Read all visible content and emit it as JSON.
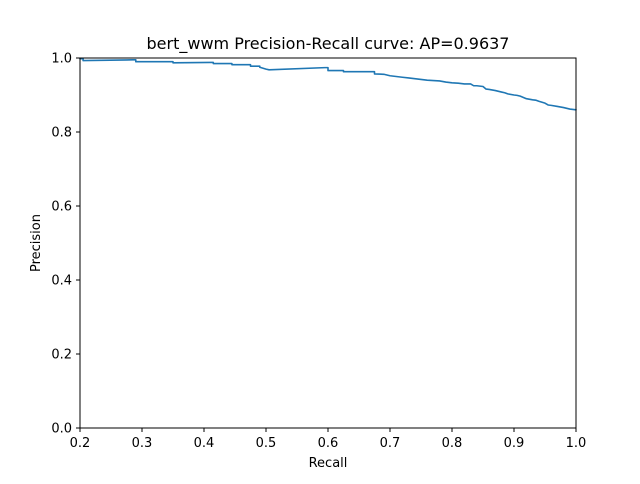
{
  "chart_data": {
    "type": "line",
    "title": "bert_wwm Precision-Recall curve: AP=0.9637",
    "xlabel": "Recall",
    "ylabel": "Precision",
    "xlim": [
      0.2,
      1.0
    ],
    "ylim": [
      0.0,
      1.0
    ],
    "xticks": [
      "0.2",
      "0.3",
      "0.4",
      "0.5",
      "0.6",
      "0.7",
      "0.8",
      "0.9",
      "1.0"
    ],
    "yticks": [
      "0.0",
      "0.2",
      "0.4",
      "0.6",
      "0.8",
      "1.0"
    ],
    "grid": false,
    "legend": false,
    "line_color": "#1f77b4",
    "series": [
      {
        "name": "",
        "x": [
          0.2,
          0.205,
          0.205,
          0.285,
          0.29,
          0.29,
          0.345,
          0.35,
          0.35,
          0.41,
          0.415,
          0.415,
          0.44,
          0.445,
          0.445,
          0.47,
          0.475,
          0.475,
          0.485,
          0.49,
          0.49,
          0.5,
          0.505,
          0.595,
          0.6,
          0.6,
          0.62,
          0.625,
          0.625,
          0.64,
          0.645,
          0.645,
          0.67,
          0.675,
          0.675,
          0.69,
          0.7,
          0.71,
          0.72,
          0.73,
          0.74,
          0.75,
          0.76,
          0.77,
          0.78,
          0.79,
          0.8,
          0.81,
          0.815,
          0.82,
          0.83,
          0.835,
          0.84,
          0.85,
          0.855,
          0.86,
          0.87,
          0.88,
          0.885,
          0.89,
          0.9,
          0.905,
          0.91,
          0.92,
          0.93,
          0.935,
          0.94,
          0.95,
          0.955,
          0.96,
          0.97,
          0.98,
          0.99,
          1.0
        ],
        "y": [
          0.998,
          0.998,
          0.993,
          0.995,
          0.995,
          0.99,
          0.99,
          0.99,
          0.987,
          0.988,
          0.988,
          0.985,
          0.985,
          0.985,
          0.982,
          0.982,
          0.982,
          0.978,
          0.978,
          0.978,
          0.975,
          0.97,
          0.968,
          0.974,
          0.974,
          0.966,
          0.966,
          0.966,
          0.963,
          0.963,
          0.963,
          0.963,
          0.963,
          0.963,
          0.957,
          0.956,
          0.952,
          0.95,
          0.948,
          0.946,
          0.944,
          0.942,
          0.94,
          0.939,
          0.938,
          0.935,
          0.933,
          0.932,
          0.931,
          0.93,
          0.93,
          0.925,
          0.925,
          0.923,
          0.916,
          0.915,
          0.912,
          0.908,
          0.906,
          0.903,
          0.9,
          0.899,
          0.897,
          0.89,
          0.887,
          0.886,
          0.883,
          0.878,
          0.873,
          0.872,
          0.869,
          0.866,
          0.862,
          0.86
        ]
      }
    ]
  }
}
